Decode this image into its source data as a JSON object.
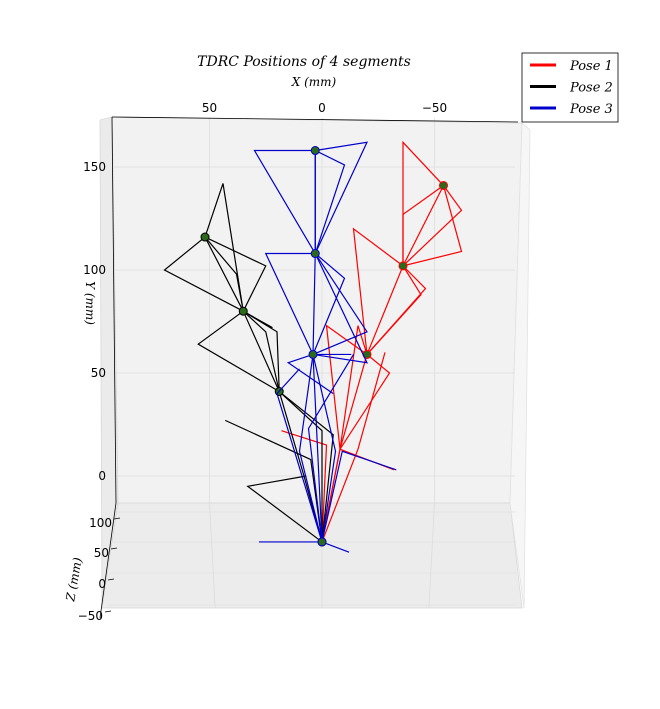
{
  "chart_data": {
    "type": "line",
    "title": "TDRC Positions of 4 segments",
    "xlabel": "X (mm)",
    "ylabel": "Y (mm)",
    "zlabel": "Z (mm)",
    "x_ticks": [
      50,
      0,
      -50
    ],
    "y_ticks": [
      150,
      100,
      50,
      0
    ],
    "z_ticks": [
      100,
      50,
      0,
      -50
    ],
    "xlim": [
      93,
      -86
    ],
    "ylim": [
      -15,
      168
    ],
    "legend_position": "top-right",
    "grid": true,
    "series": [
      {
        "name": "Pose 1",
        "color": "#ff0000",
        "nodes": [
          [
            0,
            -32
          ],
          [
            -20,
            59
          ],
          [
            -36,
            102
          ],
          [
            -54,
            141
          ]
        ],
        "lines": [
          [
            [
              0,
              -32
            ],
            [
              -8,
              13
            ],
            [
              -32,
              3
            ]
          ],
          [
            [
              0,
              -32
            ],
            [
              -16,
              13
            ],
            [
              -28,
              60
            ]
          ],
          [
            [
              0,
              -32
            ],
            [
              -2,
              15
            ],
            [
              18,
              22
            ]
          ],
          [
            [
              0,
              -32
            ],
            [
              -8,
              13
            ]
          ],
          [
            [
              -8,
              13
            ],
            [
              -20,
              59
            ],
            [
              -16,
              73
            ],
            [
              -8,
              13
            ]
          ],
          [
            [
              -8,
              13
            ],
            [
              -30,
              50
            ],
            [
              -20,
              59
            ]
          ],
          [
            [
              -8,
              13
            ],
            [
              -2,
              73
            ],
            [
              -20,
              59
            ]
          ],
          [
            [
              -20,
              59
            ],
            [
              -36,
              102
            ],
            [
              -46,
              91
            ],
            [
              -20,
              59
            ]
          ],
          [
            [
              -20,
              59
            ],
            [
              -14,
              120
            ],
            [
              -36,
              102
            ]
          ],
          [
            [
              -20,
              59
            ],
            [
              -44,
              88
            ],
            [
              -36,
              102
            ]
          ],
          [
            [
              -36,
              102
            ],
            [
              -54,
              141
            ],
            [
              -62,
              129
            ],
            [
              -36,
              102
            ]
          ],
          [
            [
              -36,
              102
            ],
            [
              -36,
              162
            ],
            [
              -54,
              141
            ]
          ],
          [
            [
              -36,
              102
            ],
            [
              -62,
              109
            ],
            [
              -54,
              141
            ]
          ],
          [
            [
              -36,
              102
            ],
            [
              -36,
              127
            ],
            [
              -54,
              141
            ]
          ]
        ]
      },
      {
        "name": "Pose 2",
        "color": "#000000",
        "nodes": [
          [
            0,
            -32
          ],
          [
            19,
            41
          ],
          [
            35,
            80
          ],
          [
            52,
            116
          ]
        ],
        "lines": [
          [
            [
              0,
              -32
            ],
            [
              33,
              -5
            ],
            [
              7,
              0
            ]
          ],
          [
            [
              0,
              -32
            ],
            [
              5,
              8
            ],
            [
              43,
              27
            ]
          ],
          [
            [
              0,
              -32
            ],
            [
              -5,
              20
            ],
            [
              19,
              41
            ]
          ],
          [
            [
              0,
              -32
            ],
            [
              8,
              0
            ],
            [
              19,
              41
            ]
          ],
          [
            [
              0,
              -32
            ],
            [
              0,
              22
            ],
            [
              19,
              41
            ]
          ],
          [
            [
              19,
              41
            ],
            [
              35,
              80
            ],
            [
              20,
              70
            ],
            [
              19,
              41
            ]
          ],
          [
            [
              19,
              41
            ],
            [
              55,
              64
            ],
            [
              35,
              80
            ]
          ],
          [
            [
              19,
              41
            ],
            [
              25,
              70
            ],
            [
              35,
              80
            ]
          ],
          [
            [
              35,
              80
            ],
            [
              52,
              116
            ],
            [
              70,
              100
            ],
            [
              35,
              80
            ]
          ],
          [
            [
              35,
              80
            ],
            [
              44,
              142
            ],
            [
              52,
              116
            ]
          ],
          [
            [
              35,
              80
            ],
            [
              38,
              98
            ],
            [
              52,
              116
            ]
          ],
          [
            [
              35,
              80
            ],
            [
              25,
              102
            ],
            [
              52,
              116
            ]
          ],
          [
            [
              35,
              80
            ],
            [
              22,
              72
            ],
            [
              35,
              80
            ]
          ]
        ]
      },
      {
        "name": "Pose 3",
        "color": "#0000cc",
        "nodes": [
          [
            0,
            -32
          ],
          [
            4,
            59
          ],
          [
            3,
            108
          ],
          [
            3,
            158
          ]
        ],
        "lines": [
          [
            [
              0,
              -32
            ],
            [
              28,
              -32
            ],
            [
              0,
              -32
            ],
            [
              -12,
              -37
            ]
          ],
          [
            [
              0,
              -32
            ],
            [
              -9,
              12
            ],
            [
              -33,
              3
            ]
          ],
          [
            [
              0,
              -32
            ],
            [
              4,
              59
            ],
            [
              -13,
              59
            ]
          ],
          [
            [
              0,
              -32
            ],
            [
              6,
              23
            ],
            [
              -14,
              59
            ]
          ],
          [
            [
              0,
              -32
            ],
            [
              -6,
              12
            ],
            [
              4,
              59
            ]
          ],
          [
            [
              0,
              -32
            ],
            [
              10,
              12
            ],
            [
              4,
              59
            ]
          ],
          [
            [
              4,
              59
            ],
            [
              3,
              108
            ],
            [
              -10,
              96
            ],
            [
              4,
              59
            ]
          ],
          [
            [
              4,
              59
            ],
            [
              -20,
              70
            ],
            [
              3,
              108
            ]
          ],
          [
            [
              4,
              59
            ],
            [
              -20,
              55
            ],
            [
              3,
              108
            ]
          ],
          [
            [
              4,
              59
            ],
            [
              25,
              108
            ],
            [
              3,
              108
            ]
          ],
          [
            [
              3,
              108
            ],
            [
              3,
              158
            ],
            [
              -10,
              151
            ],
            [
              3,
              108
            ]
          ],
          [
            [
              3,
              108
            ],
            [
              -20,
              162
            ],
            [
              3,
              158
            ]
          ],
          [
            [
              3,
              108
            ],
            [
              30,
              158
            ],
            [
              3,
              158
            ]
          ],
          [
            [
              3,
              108
            ],
            [
              3,
              158
            ]
          ],
          [
            [
              4,
              59
            ],
            [
              15,
              55
            ],
            [
              -5,
              40
            ]
          ],
          [
            [
              0,
              -32
            ],
            [
              20,
              40
            ],
            [
              10,
              52
            ]
          ]
        ]
      }
    ]
  }
}
